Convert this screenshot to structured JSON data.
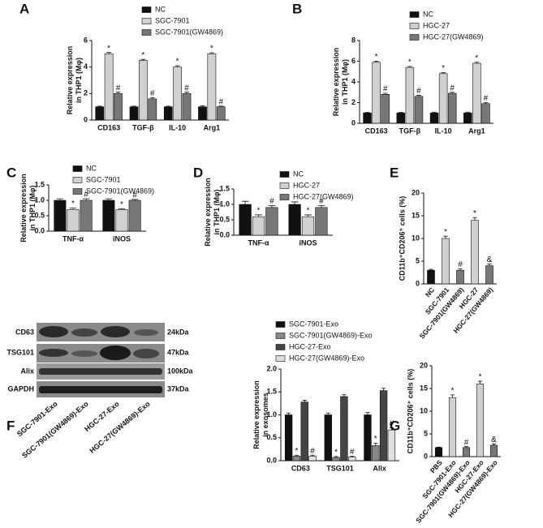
{
  "chart_data": [
    {
      "type": "bar",
      "label": "A",
      "y_label": [
        "Relative expression",
        "in THP1 (Mφ)"
      ],
      "categories": [
        "CD163",
        "TGF-β",
        "IL-10",
        "Arg1"
      ],
      "series": [
        {
          "name": "NC",
          "color": "#111111",
          "values": [
            1,
            1,
            1,
            1
          ],
          "errors": [
            0.05,
            0.05,
            0.05,
            0.08
          ],
          "annotations": [
            null,
            null,
            null,
            null
          ]
        },
        {
          "name": "SGC-7901",
          "color": "#d0d0d0",
          "values": [
            5,
            4.5,
            4,
            5
          ],
          "errors": [
            0.1,
            0.08,
            0.1,
            0.08
          ],
          "annotations": [
            "*",
            "*",
            "*",
            "*"
          ]
        },
        {
          "name": "SGC-7901(GW4869)",
          "color": "#777777",
          "values": [
            2,
            1.6,
            2,
            1
          ],
          "errors": [
            0.1,
            0.1,
            0.1,
            0.05
          ],
          "annotations": [
            "#",
            "#",
            "#",
            "#"
          ]
        }
      ],
      "ylim": [
        0,
        6
      ],
      "yticks": [
        0,
        2,
        4,
        6
      ]
    },
    {
      "type": "bar",
      "label": "B",
      "y_label": [
        "Relative expression",
        "in THP1 (Mφ)"
      ],
      "categories": [
        "CD163",
        "TGF-β",
        "IL-10",
        "Arg1"
      ],
      "series": [
        {
          "name": "NC",
          "color": "#111111",
          "values": [
            1,
            1,
            1,
            1
          ],
          "errors": [
            0.05,
            0.05,
            0.08,
            0.08
          ],
          "annotations": [
            null,
            null,
            null,
            null
          ]
        },
        {
          "name": "HGC-27",
          "color": "#d0d0d0",
          "values": [
            5.9,
            5.4,
            4.8,
            5.8
          ],
          "errors": [
            0.1,
            0.1,
            0.1,
            0.1
          ],
          "annotations": [
            "*",
            "*",
            "*",
            "*"
          ]
        },
        {
          "name": "HGC-27(GW4869)",
          "color": "#777777",
          "values": [
            2.8,
            2.6,
            2.9,
            1.9
          ],
          "errors": [
            0.1,
            0.1,
            0.1,
            0.1
          ],
          "annotations": [
            "#",
            "#",
            "#",
            "#"
          ]
        }
      ],
      "ylim": [
        0,
        8
      ],
      "yticks": [
        0,
        2,
        4,
        6,
        8
      ]
    },
    {
      "type": "bar",
      "label": "C",
      "y_label": [
        "Relative expression",
        "in THP1 (Mφ)"
      ],
      "categories": [
        "TNF-α",
        "iNOS"
      ],
      "series": [
        {
          "name": "NC",
          "color": "#111111",
          "values": [
            1,
            1
          ],
          "errors": [
            0.05,
            0.05
          ],
          "annotations": [
            null,
            null
          ]
        },
        {
          "name": "SGC-7901",
          "color": "#d0d0d0",
          "values": [
            0.7,
            0.7
          ],
          "errors": [
            0.05,
            0.03
          ],
          "annotations": [
            "*",
            "*"
          ]
        },
        {
          "name": "SGC-7901(GW4869)",
          "color": "#777777",
          "values": [
            1,
            1
          ],
          "errors": [
            0.05,
            0.03
          ],
          "annotations": [
            "#",
            "#"
          ]
        }
      ],
      "ylim": [
        0,
        1.5
      ],
      "yticks": [
        {
          "value": 0,
          "label": "0.0"
        },
        0.5,
        {
          "value": 1,
          "label": "1.0"
        },
        1.5
      ]
    },
    {
      "type": "bar",
      "label": "D",
      "y_label": [
        "Relative expression",
        "in THP1 (Mφ)"
      ],
      "categories": [
        "TNF-α",
        "iNOS"
      ],
      "series": [
        {
          "name": "NC",
          "color": "#111111",
          "values": [
            1,
            1
          ],
          "errors": [
            0.1,
            0.08
          ],
          "annotations": [
            null,
            null
          ]
        },
        {
          "name": "HGC-27",
          "color": "#d0d0d0",
          "values": [
            0.6,
            0.6
          ],
          "errors": [
            0.06,
            0.06
          ],
          "annotations": [
            "*",
            "*"
          ]
        },
        {
          "name": "HGC-27(GW4869)",
          "color": "#777777",
          "values": [
            0.9,
            0.9
          ],
          "errors": [
            0.06,
            0.06
          ],
          "annotations": [
            "#",
            "#"
          ]
        }
      ],
      "ylim": [
        0,
        1.5
      ],
      "yticks": [
        {
          "value": 0,
          "label": "0.0"
        },
        0.5,
        {
          "value": 1,
          "label": "1.0"
        },
        1.5
      ]
    },
    {
      "type": "bar",
      "label": "E",
      "y_label": [
        "CD11b⁺CD206⁺ cells (%)"
      ],
      "categories": [
        "NC",
        "SGC-7901",
        "SGC-7901(GW4869)",
        "HGC-27",
        "HGC-27(GW4869)"
      ],
      "values": [
        3,
        10,
        3,
        14,
        4
      ],
      "errors": [
        0.2,
        0.5,
        0.3,
        0.6,
        0.4
      ],
      "colors": [
        "#111111",
        "#d0d0d0",
        "#777777",
        "#d0d0d0",
        "#777777"
      ],
      "annotations": [
        null,
        "*",
        "#",
        "*",
        "&"
      ],
      "ylim": [
        0,
        20
      ],
      "yticks": [
        0,
        5,
        10,
        15,
        20
      ]
    },
    {
      "type": "bar",
      "label": "F",
      "y_label": [
        "Relative expression",
        "in exosomes"
      ],
      "categories": [
        "CD63",
        "TSG101",
        "Alix"
      ],
      "series": [
        {
          "name": "SGC-7901-Exo",
          "color": "#111111",
          "values": [
            1,
            1,
            1
          ],
          "errors": [
            0.04,
            0.04,
            0.05
          ],
          "annotations": [
            null,
            null,
            null
          ]
        },
        {
          "name": "SGC-7901(GW4869)-Exo",
          "color": "#888888",
          "values": [
            0.1,
            0.07,
            0.33
          ],
          "errors": [
            0.02,
            0.02,
            0.05
          ],
          "annotations": [
            "*",
            "*",
            "*"
          ]
        },
        {
          "name": "HGC-27-Exo",
          "color": "#444444",
          "values": [
            1.28,
            1.4,
            1.53
          ],
          "errors": [
            0.04,
            0.04,
            0.05
          ],
          "annotations": [
            null,
            null,
            null
          ]
        },
        {
          "name": "HGC-27(GW4869)-Exo",
          "color": "#e0e0e0",
          "values": [
            0.1,
            0.08,
            0.67
          ],
          "errors": [
            0.02,
            0.02,
            0.05
          ],
          "annotations": [
            "#",
            "#",
            "#"
          ]
        }
      ],
      "ylim": [
        0,
        2
      ],
      "yticks": [
        {
          "value": 0,
          "label": "0.0"
        },
        0.5,
        {
          "value": 1,
          "label": "1.0"
        },
        1.5,
        {
          "value": 2,
          "label": "2.0"
        }
      ]
    },
    {
      "type": "bar",
      "label": "G",
      "y_label": [
        "CD11b⁺CD206⁺ cells (%)"
      ],
      "categories": [
        "PBS",
        "SGC-7901-Exo",
        "SGC-7901(GW4869)-Exo",
        "HGC-27-Exo",
        "HGC-27(GW4869)-Exo"
      ],
      "values": [
        2,
        13,
        2,
        16,
        2.5
      ],
      "errors": [
        0.1,
        0.6,
        0.2,
        0.6,
        0.3
      ],
      "colors": [
        "#111111",
        "#d0d0d0",
        "#777777",
        "#d0d0d0",
        "#777777"
      ],
      "annotations": [
        null,
        "*",
        "#",
        "*",
        "&"
      ],
      "ylim": [
        0,
        20
      ],
      "yticks": [
        0,
        5,
        10,
        15,
        20
      ]
    }
  ],
  "blot": {
    "rows": [
      {
        "label": "CD63",
        "size": "24kDa"
      },
      {
        "label": "TSG101",
        "size": "47kDa"
      },
      {
        "label": "Alix",
        "size": "100kDa"
      },
      {
        "label": "GAPDH",
        "size": "37kDa"
      }
    ],
    "lanes": [
      "SGC-7901-Exo",
      "SGC-7901(GW4869)-Exo",
      "HGC-27-Exo",
      "HGC-27(GW4869)-Exo"
    ]
  }
}
